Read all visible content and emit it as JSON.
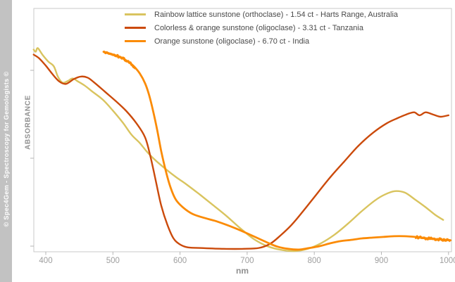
{
  "watermark": "© Spec4Gem - Spectroscopy for Gemologists ©",
  "colors": {
    "strip_bg": "#c2c2c2",
    "frame": "#c9c9c9",
    "tick": "#b5b5b5",
    "tick_label": "#9e9e9e",
    "axis_label": "#8f8f8f",
    "legend_text": "#4a4a4a"
  },
  "chart_data": {
    "type": "line",
    "title": "",
    "xlabel": "nm",
    "ylabel": "ABSORBANCE",
    "x_ticks": [
      400,
      500,
      600,
      700,
      800,
      900,
      1000
    ],
    "x_range": [
      382,
      1004
    ],
    "y_range_note": "y axis unlabeled; values are absorbance in arbitrary units normalized 0-1 of plot height",
    "grid": false,
    "legend_position": "top-center-inside",
    "series": [
      {
        "name": "Rainbow lattice sunstone (orthoclase) - 1.54 ct - Harts Range, Australia",
        "color": "#d9c45f",
        "width": 2.4,
        "points": [
          [
            382,
            0.831
          ],
          [
            385,
            0.822
          ],
          [
            388,
            0.837
          ],
          [
            395,
            0.81
          ],
          [
            404,
            0.781
          ],
          [
            412,
            0.762
          ],
          [
            418,
            0.72
          ],
          [
            425,
            0.695
          ],
          [
            433,
            0.702
          ],
          [
            440,
            0.712
          ],
          [
            448,
            0.7
          ],
          [
            458,
            0.683
          ],
          [
            470,
            0.657
          ],
          [
            485,
            0.625
          ],
          [
            500,
            0.58
          ],
          [
            515,
            0.53
          ],
          [
            528,
            0.48
          ],
          [
            540,
            0.447
          ],
          [
            552,
            0.407
          ],
          [
            565,
            0.372
          ],
          [
            580,
            0.337
          ],
          [
            595,
            0.305
          ],
          [
            610,
            0.276
          ],
          [
            630,
            0.234
          ],
          [
            650,
            0.19
          ],
          [
            670,
            0.145
          ],
          [
            690,
            0.096
          ],
          [
            710,
            0.052
          ],
          [
            730,
            0.023
          ],
          [
            750,
            0.008
          ],
          [
            770,
            0.003
          ],
          [
            790,
            0.012
          ],
          [
            810,
            0.035
          ],
          [
            830,
            0.07
          ],
          [
            850,
            0.115
          ],
          [
            870,
            0.165
          ],
          [
            890,
            0.21
          ],
          [
            905,
            0.235
          ],
          [
            920,
            0.249
          ],
          [
            935,
            0.243
          ],
          [
            950,
            0.215
          ],
          [
            965,
            0.185
          ],
          [
            980,
            0.152
          ],
          [
            992,
            0.131
          ]
        ]
      },
      {
        "name": "Colorless & orange sunstone (oligoclase) - 3.31 ct - Tanzania",
        "color": "#cb4a0b",
        "width": 2.4,
        "points": [
          [
            382,
            0.81
          ],
          [
            390,
            0.795
          ],
          [
            400,
            0.765
          ],
          [
            410,
            0.73
          ],
          [
            420,
            0.7
          ],
          [
            430,
            0.69
          ],
          [
            442,
            0.71
          ],
          [
            452,
            0.72
          ],
          [
            462,
            0.716
          ],
          [
            472,
            0.696
          ],
          [
            488,
            0.658
          ],
          [
            504,
            0.62
          ],
          [
            520,
            0.578
          ],
          [
            535,
            0.528
          ],
          [
            548,
            0.47
          ],
          [
            556,
            0.39
          ],
          [
            564,
            0.29
          ],
          [
            572,
            0.19
          ],
          [
            581,
            0.112
          ],
          [
            590,
            0.056
          ],
          [
            600,
            0.03
          ],
          [
            612,
            0.018
          ],
          [
            635,
            0.015
          ],
          [
            665,
            0.012
          ],
          [
            695,
            0.012
          ],
          [
            718,
            0.016
          ],
          [
            735,
            0.034
          ],
          [
            750,
            0.068
          ],
          [
            766,
            0.11
          ],
          [
            782,
            0.162
          ],
          [
            803,
            0.235
          ],
          [
            824,
            0.307
          ],
          [
            845,
            0.372
          ],
          [
            866,
            0.436
          ],
          [
            887,
            0.488
          ],
          [
            908,
            0.528
          ],
          [
            924,
            0.549
          ],
          [
            940,
            0.567
          ],
          [
            949,
            0.573
          ],
          [
            957,
            0.561
          ],
          [
            966,
            0.573
          ],
          [
            977,
            0.564
          ],
          [
            988,
            0.555
          ],
          [
            1000,
            0.561
          ]
        ]
      },
      {
        "name": "Orange sunstone (oligoclase) - 6.70 ct - India",
        "color": "#fb8b06",
        "width": 2.8,
        "noisy_ranges": [
          [
            486,
            535
          ],
          [
            950,
            1003
          ]
        ],
        "points": [
          [
            486,
            0.822
          ],
          [
            492,
            0.817
          ],
          [
            498,
            0.812
          ],
          [
            505,
            0.806
          ],
          [
            511,
            0.8
          ],
          [
            517,
            0.791
          ],
          [
            524,
            0.779
          ],
          [
            532,
            0.76
          ],
          [
            540,
            0.733
          ],
          [
            548,
            0.692
          ],
          [
            554,
            0.643
          ],
          [
            560,
            0.577
          ],
          [
            566,
            0.5
          ],
          [
            572,
            0.413
          ],
          [
            579,
            0.33
          ],
          [
            586,
            0.263
          ],
          [
            594,
            0.213
          ],
          [
            605,
            0.181
          ],
          [
            619,
            0.155
          ],
          [
            635,
            0.14
          ],
          [
            651,
            0.128
          ],
          [
            667,
            0.113
          ],
          [
            683,
            0.096
          ],
          [
            698,
            0.078
          ],
          [
            714,
            0.058
          ],
          [
            730,
            0.038
          ],
          [
            745,
            0.021
          ],
          [
            761,
            0.012
          ],
          [
            777,
            0.009
          ],
          [
            792,
            0.015
          ],
          [
            808,
            0.023
          ],
          [
            824,
            0.035
          ],
          [
            840,
            0.044
          ],
          [
            856,
            0.049
          ],
          [
            871,
            0.055
          ],
          [
            887,
            0.058
          ],
          [
            903,
            0.061
          ],
          [
            919,
            0.064
          ],
          [
            934,
            0.064
          ],
          [
            950,
            0.061
          ],
          [
            966,
            0.055
          ],
          [
            981,
            0.052
          ],
          [
            996,
            0.049
          ],
          [
            1003,
            0.047
          ]
        ]
      }
    ]
  }
}
